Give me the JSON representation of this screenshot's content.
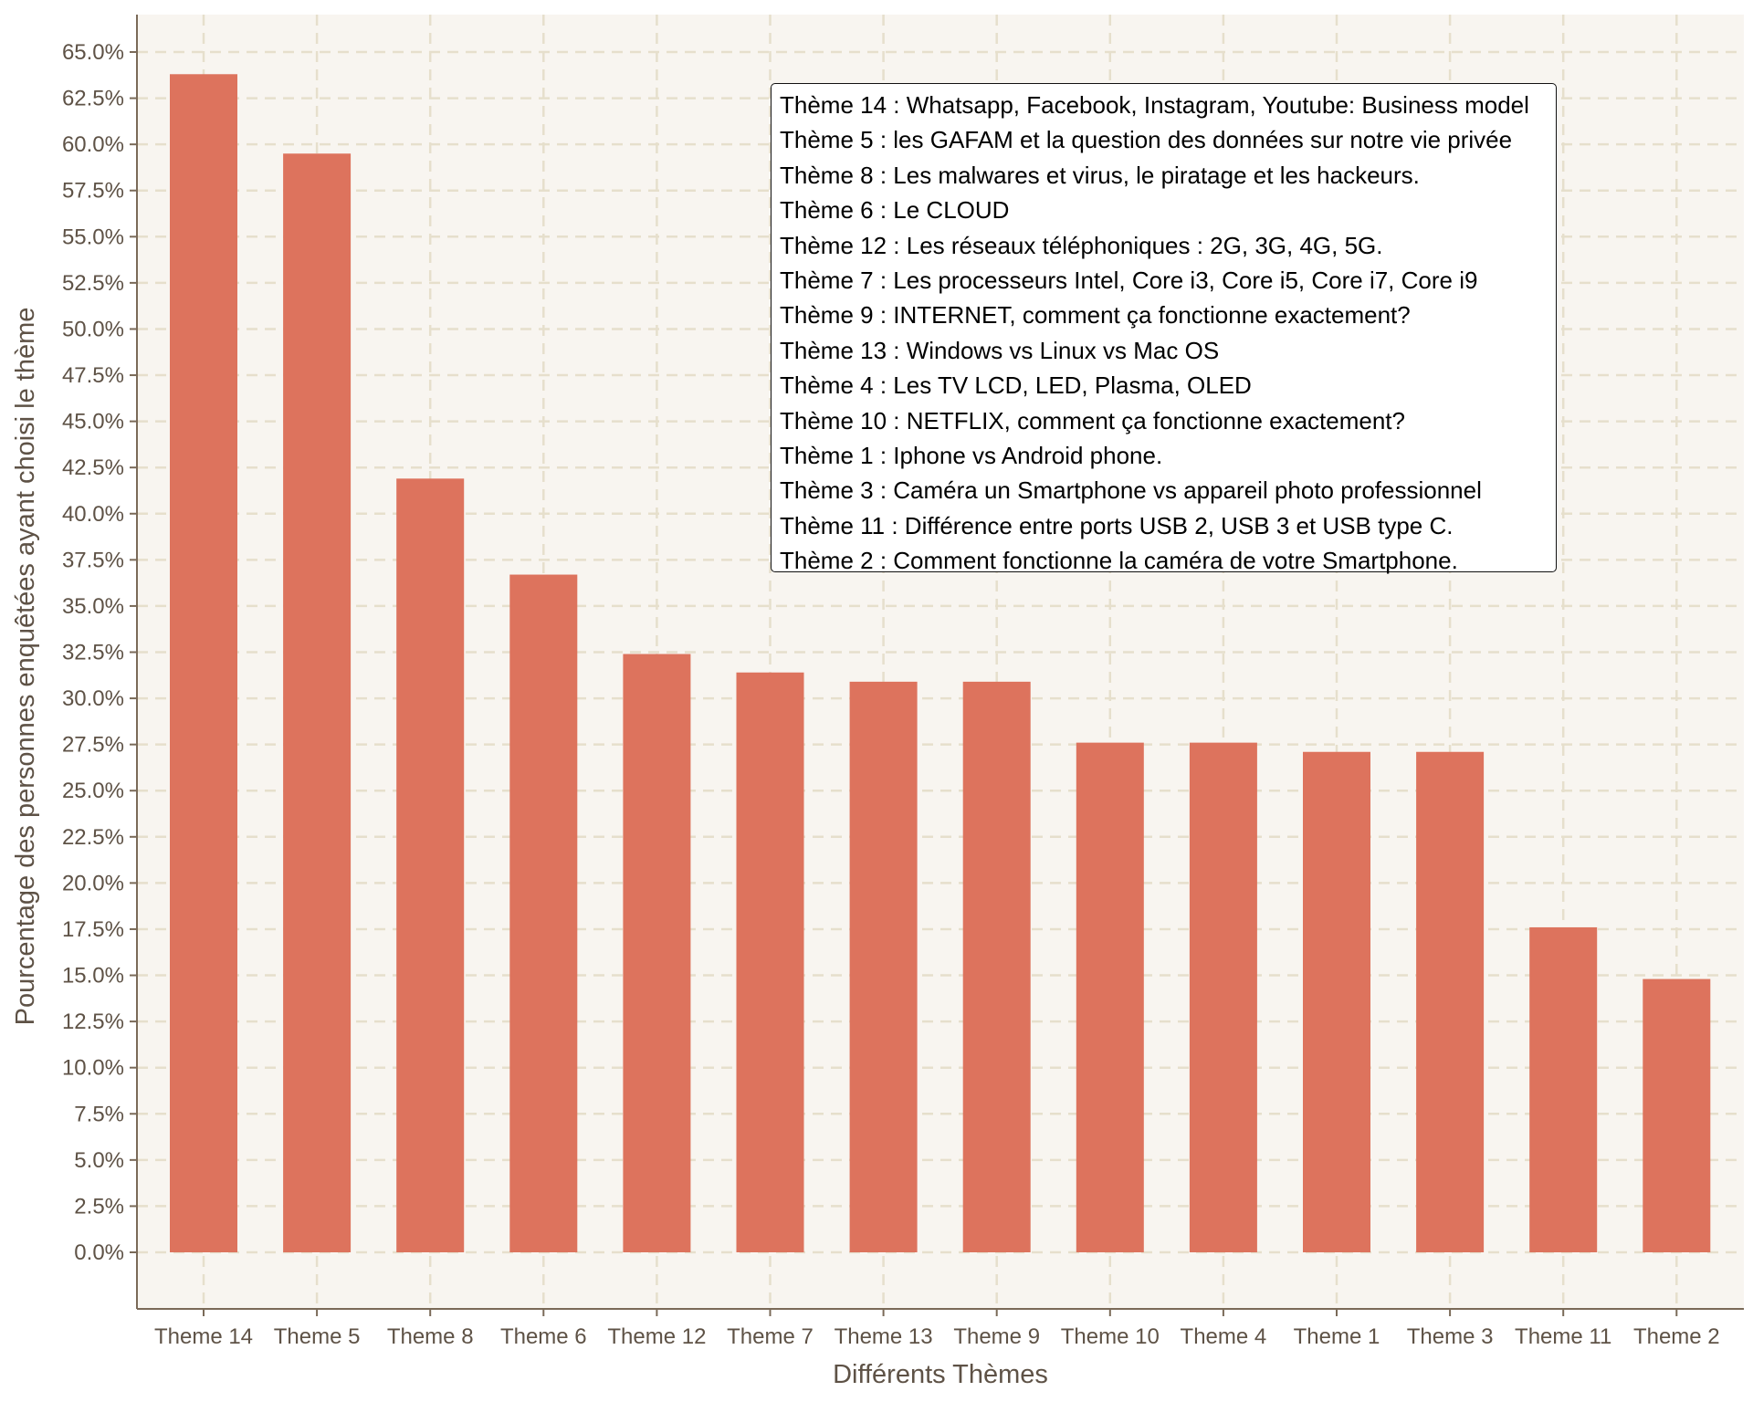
{
  "chart_data": {
    "type": "bar",
    "xlabel": "Différents Thèmes",
    "ylabel": "Pourcentage des personnes enquêtées ayant choisi le thème",
    "ylim": [
      0,
      65
    ],
    "y_ticks": [
      "0.0%",
      "2.5%",
      "5.0%",
      "7.5%",
      "10.0%",
      "12.5%",
      "15.0%",
      "17.5%",
      "20.0%",
      "22.5%",
      "25.0%",
      "27.5%",
      "30.0%",
      "32.5%",
      "35.0%",
      "37.5%",
      "40.0%",
      "42.5%",
      "45.0%",
      "47.5%",
      "50.0%",
      "52.5%",
      "55.0%",
      "57.5%",
      "60.0%",
      "62.5%",
      "65.0%"
    ],
    "categories": [
      "Theme 14",
      "Theme 5",
      "Theme 8",
      "Theme 6",
      "Theme 12",
      "Theme 7",
      "Theme 13",
      "Theme 9",
      "Theme 10",
      "Theme 4",
      "Theme 1",
      "Theme 3",
      "Theme 11",
      "Theme 2"
    ],
    "values": [
      63.8,
      59.5,
      41.9,
      36.7,
      32.4,
      31.4,
      30.9,
      30.9,
      27.6,
      27.6,
      27.1,
      27.1,
      17.6,
      14.8
    ],
    "bar_color": "#dd735d",
    "background_color": "#f8f5f0",
    "grid": true,
    "grid_color": "#e6dfcc",
    "legend_placement": "top-right",
    "legend_entries": [
      "Thème 14 : Whatsapp, Facebook, Instagram, Youtube: Business model",
      "Thème 5 : les GAFAM et la question des données sur notre vie privée",
      "Thème 8 : Les malwares et virus, le piratage et les hackeurs.",
      "Thème 6 : Le CLOUD",
      "Thème 12 : Les réseaux téléphoniques : 2G, 3G, 4G, 5G.",
      "Thème 7 : Les processeurs Intel, Core i3, Core i5, Core i7, Core i9",
      "Thème 9 : INTERNET, comment ça fonctionne exactement?",
      "Thème 13 : Windows vs Linux vs Mac OS",
      "Thème 4 : Les TV LCD, LED, Plasma, OLED",
      "Thème 10 : NETFLIX, comment ça fonctionne exactement?",
      "Thème 1 : Iphone vs Android phone.",
      "Thème 3 : Caméra un Smartphone vs appareil photo professionnel",
      "Thème 11 : Différence entre ports USB 2, USB 3 et USB type C.",
      "Thème 2 : Comment fonctionne la caméra de votre Smartphone."
    ]
  }
}
